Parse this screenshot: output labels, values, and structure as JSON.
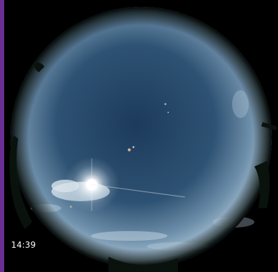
{
  "image": {
    "type": "all-sky fisheye camera view",
    "timestamp": "14:39",
    "colors": {
      "border": "#6a2f94",
      "sky_center": "#1f3f63",
      "sky_edge": "#9bb9cf",
      "sun": "#ffffff",
      "horizon_dark": "#0b1410"
    }
  }
}
